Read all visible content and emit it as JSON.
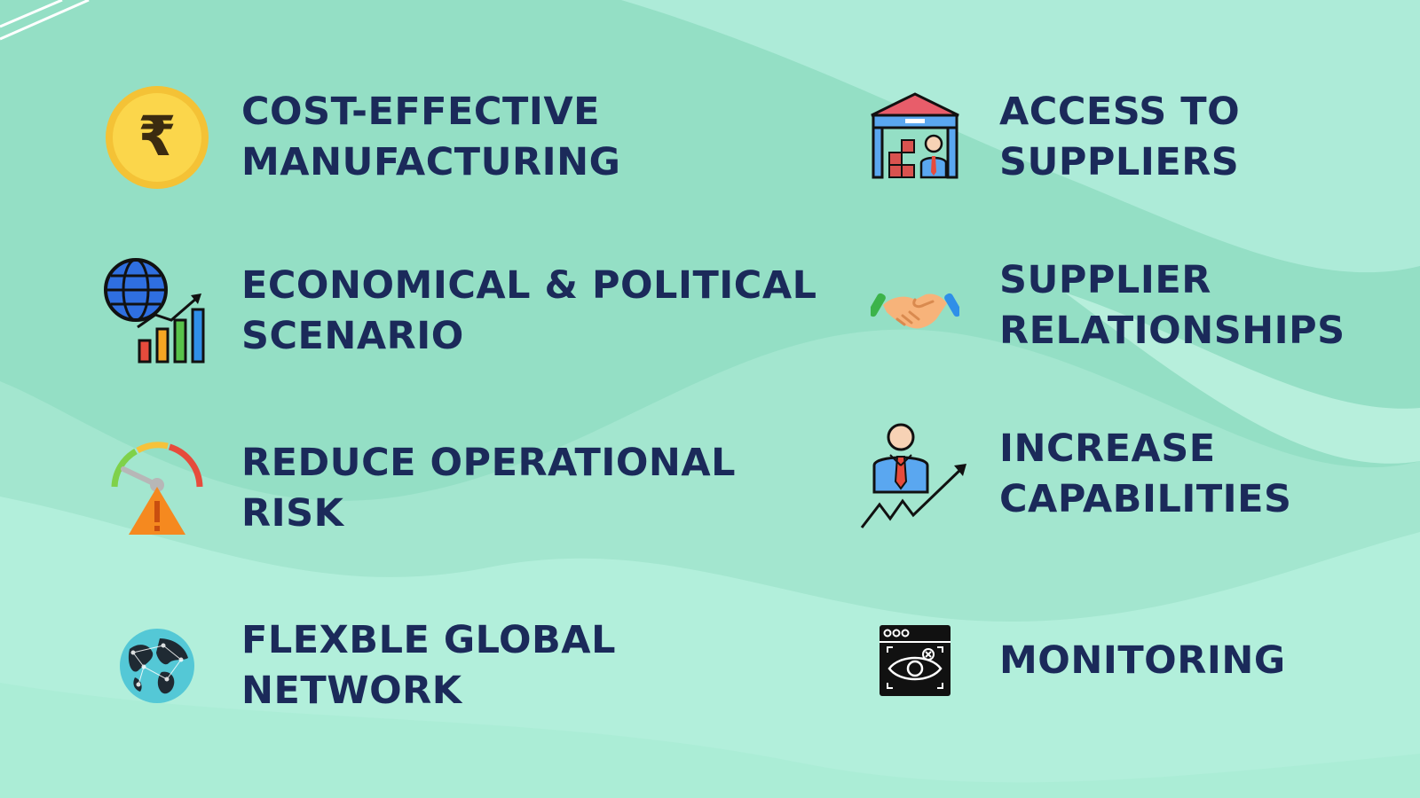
{
  "items": [
    {
      "icon": "rupee-coin-icon",
      "line1": "Cost-Effective",
      "line2": "Manufacturing"
    },
    {
      "icon": "globe-chart-icon",
      "line1": "Economical & Political",
      "line2": "Scenario"
    },
    {
      "icon": "risk-gauge-icon",
      "line1": "Reduce Operational",
      "line2": "Risk"
    },
    {
      "icon": "world-network-icon",
      "line1": "Flexble Global",
      "line2": "Network"
    },
    {
      "icon": "warehouse-supplier-icon",
      "line1": "Access to",
      "line2": "Suppliers"
    },
    {
      "icon": "handshake-icon",
      "line1": "Supplier",
      "line2": "Relationships"
    },
    {
      "icon": "growth-person-icon",
      "line1": "Increase",
      "line2": "Capabilities"
    },
    {
      "icon": "eye-monitor-icon",
      "line1": "Monitoring",
      "line2": ""
    }
  ],
  "colors": {
    "text": "#1b2a5a",
    "background": "#a9e8d3"
  }
}
